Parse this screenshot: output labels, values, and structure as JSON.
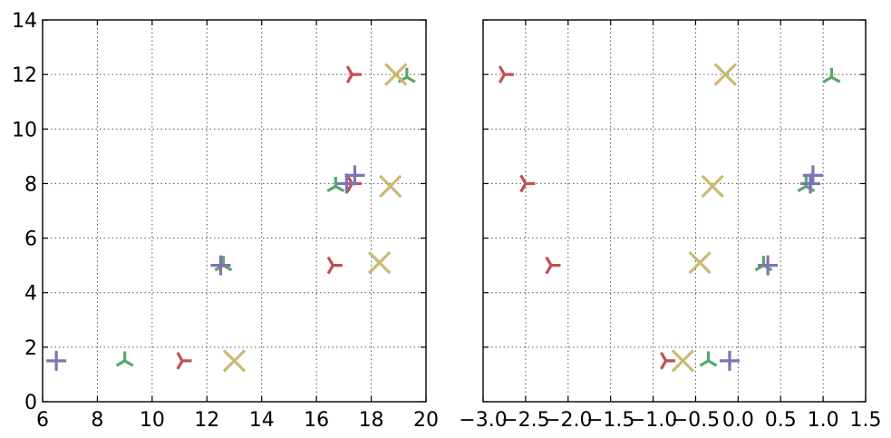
{
  "chart_data": [
    {
      "type": "scatter",
      "title": "",
      "xlabel": "",
      "ylabel": "",
      "xlim": [
        6,
        20
      ],
      "ylim": [
        0,
        14
      ],
      "xticks": [
        6,
        8,
        10,
        12,
        14,
        16,
        18,
        20
      ],
      "yticks": [
        0,
        2,
        4,
        6,
        8,
        10,
        12,
        14
      ],
      "xtick_labels": [
        "6",
        "8",
        "10",
        "12",
        "14",
        "16",
        "18",
        "20"
      ],
      "ytick_labels": [
        "0",
        "2",
        "4",
        "6",
        "8",
        "10",
        "12",
        "14"
      ],
      "grid": true,
      "series": [
        {
          "marker": "tri_right",
          "color": "#c44e52",
          "x": [
            11.1,
            16.6,
            17.3,
            17.3
          ],
          "y": [
            1.5,
            5.0,
            8.0,
            12.0
          ]
        },
        {
          "marker": "tri_up",
          "color": "#55a868",
          "x": [
            9.0,
            12.6,
            16.7,
            19.3
          ],
          "y": [
            1.5,
            5.0,
            7.9,
            11.9
          ]
        },
        {
          "marker": "x",
          "color": "#ccb974",
          "x": [
            13.0,
            18.3,
            18.7,
            18.9
          ],
          "y": [
            1.5,
            5.1,
            7.9,
            12.0
          ]
        },
        {
          "marker": "plus",
          "color": "#8172b2",
          "x": [
            6.5,
            12.5,
            17.1,
            17.4
          ],
          "y": [
            1.5,
            5.0,
            8.0,
            8.3
          ]
        }
      ]
    },
    {
      "type": "scatter",
      "title": "",
      "xlabel": "",
      "ylabel": "",
      "xlim": [
        -3.0,
        1.5
      ],
      "ylim": [
        0,
        14
      ],
      "xticks": [
        -3.0,
        -2.5,
        -2.0,
        -1.5,
        -1.0,
        -0.5,
        0.0,
        0.5,
        1.0,
        1.5
      ],
      "yticks": [
        0,
        2,
        4,
        6,
        8,
        10,
        12,
        14
      ],
      "xtick_labels": [
        "−3.0",
        "−2.5",
        "−2.0",
        "−1.5",
        "−1.0",
        "−0.5",
        "0.0",
        "0.5",
        "1.0",
        "1.5"
      ],
      "ytick_labels": [],
      "grid": true,
      "series": [
        {
          "marker": "tri_right",
          "color": "#c44e52",
          "x": [
            -0.85,
            -2.2,
            -2.5,
            -2.75
          ],
          "y": [
            1.5,
            5.0,
            8.0,
            12.0
          ]
        },
        {
          "marker": "tri_up",
          "color": "#55a868",
          "x": [
            -0.35,
            0.3,
            0.8,
            1.1
          ],
          "y": [
            1.5,
            5.0,
            7.9,
            11.9
          ]
        },
        {
          "marker": "x",
          "color": "#ccb974",
          "x": [
            -0.65,
            -0.45,
            -0.3,
            -0.15
          ],
          "y": [
            1.5,
            5.1,
            7.9,
            12.0
          ]
        },
        {
          "marker": "plus",
          "color": "#8172b2",
          "x": [
            -0.1,
            0.35,
            0.85,
            0.88
          ],
          "y": [
            1.5,
            5.0,
            8.0,
            8.3
          ]
        }
      ]
    }
  ]
}
